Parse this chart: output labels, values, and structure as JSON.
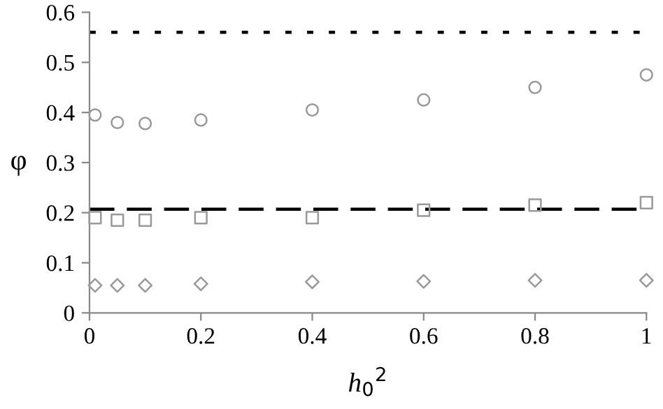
{
  "chart_data": {
    "type": "scatter",
    "xlabel": "h$_{0}$$^{2}$",
    "ylabel": "φ",
    "x": [
      0.01,
      0.05,
      0.1,
      0.2,
      0.4,
      0.6,
      0.8,
      1.0
    ],
    "series": [
      {
        "color": "#999999",
        "marker": "circle",
        "values": [
          0.395,
          0.38,
          0.378,
          0.385,
          0.405,
          0.425,
          0.45,
          0.475
        ]
      },
      {
        "color": "#999999",
        "marker": "square",
        "values": [
          0.19,
          0.185,
          0.185,
          0.19,
          0.19,
          0.205,
          0.215,
          0.22
        ]
      },
      {
        "color": "#999999",
        "marker": "diamond",
        "values": [
          0.055,
          0.055,
          0.055,
          0.058,
          0.062,
          0.063,
          0.065,
          0.065
        ]
      }
    ],
    "ref_lines": [
      {
        "axis": "y",
        "value": 0.56,
        "color": "#000000",
        "line_style": "dotted"
      },
      {
        "axis": "y",
        "value": 0.207,
        "color": "#000000",
        "line_style": "dashed"
      }
    ],
    "xlim": [
      0,
      1
    ],
    "xticks": [
      0,
      0.2,
      0.4,
      0.6,
      0.8,
      1
    ],
    "ylim": [
      0,
      0.6
    ],
    "yticks": [
      0,
      0.1,
      0.2,
      0.3,
      0.4,
      0.5,
      0.6
    ],
    "grid": false,
    "legend": false
  }
}
